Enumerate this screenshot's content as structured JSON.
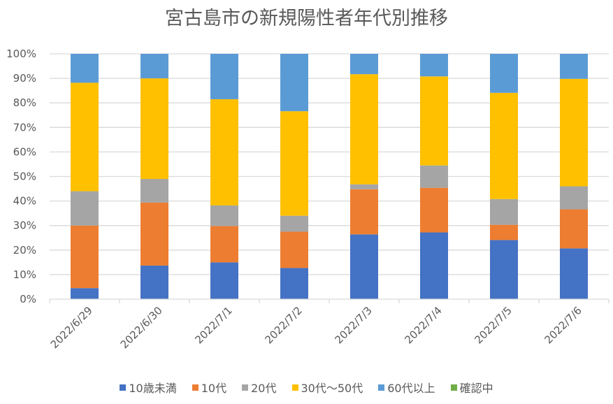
{
  "chart_data": {
    "type": "bar",
    "stacked": "percent",
    "title": "宮古島市の新規陽性者年代別推移",
    "xlabel": "",
    "ylabel": "",
    "ylim": [
      0,
      100
    ],
    "yticks": [
      "0%",
      "10%",
      "20%",
      "30%",
      "40%",
      "50%",
      "60%",
      "70%",
      "80%",
      "90%",
      "100%"
    ],
    "grid": true,
    "legend_position": "bottom",
    "categories": [
      "2022/6/29",
      "2022/6/30",
      "2022/7/1",
      "2022/7/2",
      "2022/7/3",
      "2022/7/4",
      "2022/7/5",
      "2022/7/6"
    ],
    "series": [
      {
        "name": "10歳未満",
        "color": "#4472C4",
        "values": [
          4.5,
          13.7,
          15.0,
          12.7,
          26.4,
          27.2,
          24.1,
          20.7
        ]
      },
      {
        "name": "10代",
        "color": "#ED7D31",
        "values": [
          25.5,
          25.7,
          14.8,
          14.8,
          18.4,
          18.2,
          6.2,
          15.9
        ]
      },
      {
        "name": "20代",
        "color": "#A5A5A5",
        "values": [
          14.0,
          9.6,
          8.4,
          6.5,
          2.0,
          9.1,
          10.5,
          9.4
        ]
      },
      {
        "name": "30代～50代",
        "color": "#FFC000",
        "values": [
          44.2,
          41.0,
          43.3,
          42.6,
          44.9,
          36.3,
          43.3,
          43.8
        ]
      },
      {
        "name": "60代以上",
        "color": "#5B9BD5",
        "values": [
          11.8,
          10.0,
          18.5,
          23.4,
          8.3,
          9.2,
          15.9,
          10.2
        ]
      },
      {
        "name": "確認中",
        "color": "#70AD47",
        "values": [
          0,
          0,
          0,
          0,
          0,
          0,
          0,
          0
        ]
      }
    ]
  }
}
